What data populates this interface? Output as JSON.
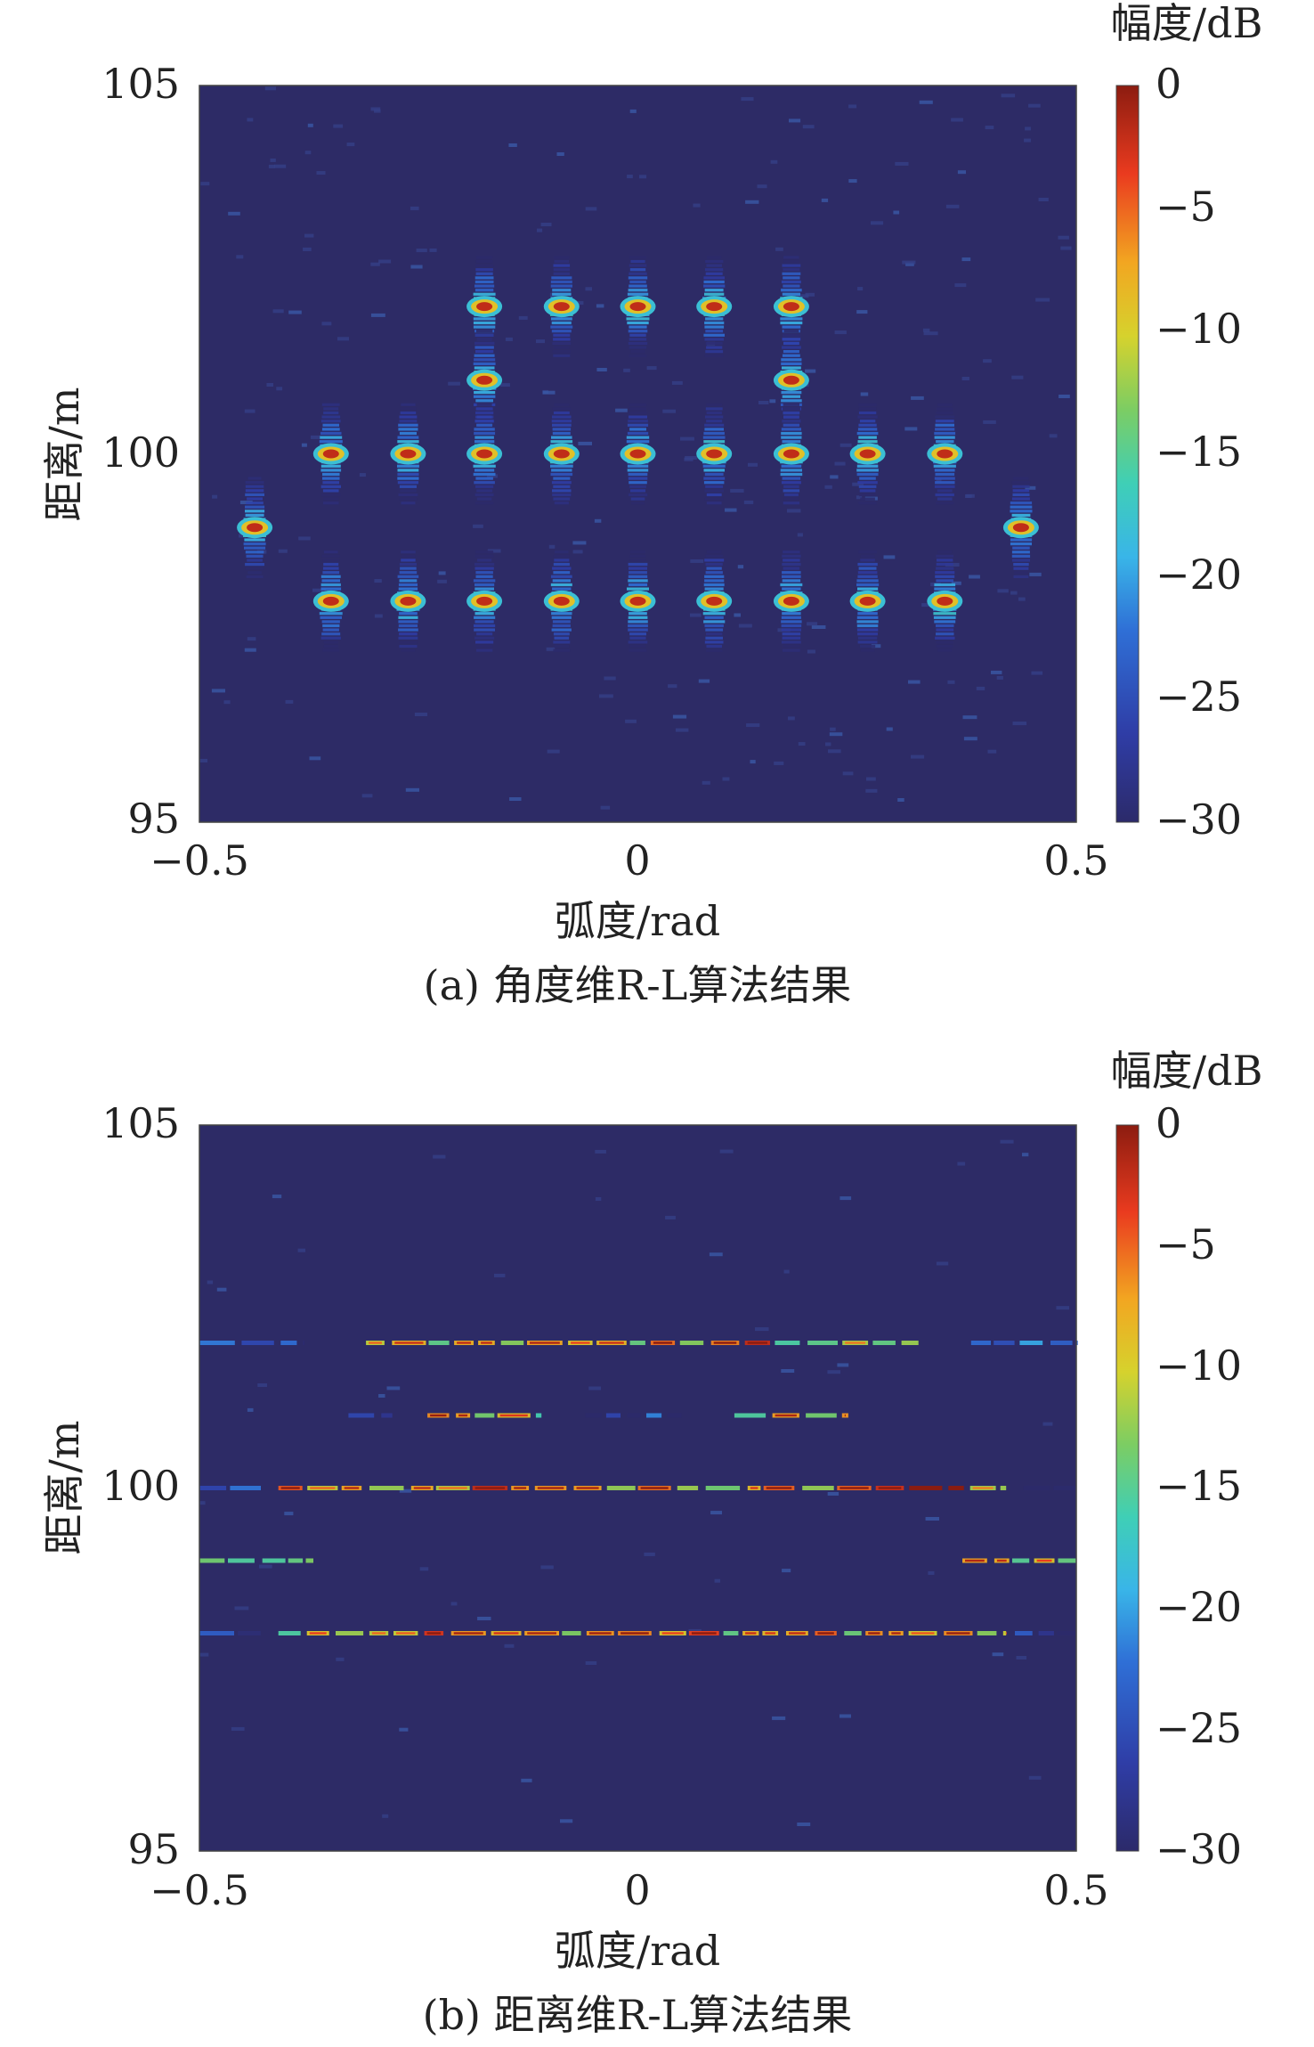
{
  "figure": {
    "panels": [
      {
        "caption": "(a) 角度维R-L算法结果",
        "xlabel": "弧度/rad",
        "ylabel": "距离/m",
        "colorbar_label": "幅度/dB",
        "x_ticks": [
          "−0.5",
          "0",
          "0.5"
        ],
        "y_ticks": [
          "105",
          "100",
          "95"
        ],
        "colorbar_ticks": [
          "0",
          "−5",
          "−10",
          "−15",
          "−20",
          "−25",
          "−30"
        ]
      },
      {
        "caption": "(b) 距离维R-L算法结果",
        "xlabel": "弧度/rad",
        "ylabel": "距离/m",
        "colorbar_label": "幅度/dB",
        "x_ticks": [
          "−0.5",
          "0",
          "0.5"
        ],
        "y_ticks": [
          "105",
          "100",
          "95"
        ],
        "colorbar_ticks": [
          "0",
          "−5",
          "−10",
          "−15",
          "−20",
          "−25",
          "−30"
        ]
      }
    ]
  },
  "chart_data": [
    {
      "type": "heatmap",
      "title": "",
      "xlabel": "弧度/rad",
      "ylabel": "距离/m",
      "xlim": [
        -0.5,
        0.5
      ],
      "ylim": [
        95,
        105
      ],
      "clim": [
        -30,
        0
      ],
      "colorbar_label": "幅度/dB",
      "colormap": "jet",
      "background_level_db": -30,
      "peaks_shape": "narrow in angle, spread in range",
      "peaks": [
        {
          "x": -0.175,
          "y": 102,
          "db": 0
        },
        {
          "x": -0.087,
          "y": 102,
          "db": 0
        },
        {
          "x": 0,
          "y": 102,
          "db": 0
        },
        {
          "x": 0.087,
          "y": 102,
          "db": 0
        },
        {
          "x": 0.175,
          "y": 102,
          "db": 0
        },
        {
          "x": -0.175,
          "y": 101,
          "db": 0
        },
        {
          "x": 0.175,
          "y": 101,
          "db": 0
        },
        {
          "x": -0.35,
          "y": 100,
          "db": 0
        },
        {
          "x": -0.262,
          "y": 100,
          "db": 0
        },
        {
          "x": -0.175,
          "y": 100,
          "db": 0
        },
        {
          "x": -0.087,
          "y": 100,
          "db": 0
        },
        {
          "x": 0,
          "y": 100,
          "db": 0
        },
        {
          "x": 0.087,
          "y": 100,
          "db": 0
        },
        {
          "x": 0.175,
          "y": 100,
          "db": 0
        },
        {
          "x": 0.262,
          "y": 100,
          "db": 0
        },
        {
          "x": 0.35,
          "y": 100,
          "db": 0
        },
        {
          "x": -0.437,
          "y": 99,
          "db": 0
        },
        {
          "x": 0.437,
          "y": 99,
          "db": 0
        },
        {
          "x": -0.35,
          "y": 98,
          "db": 0
        },
        {
          "x": -0.262,
          "y": 98,
          "db": 0
        },
        {
          "x": -0.175,
          "y": 98,
          "db": 0
        },
        {
          "x": -0.087,
          "y": 98,
          "db": 0
        },
        {
          "x": 0,
          "y": 98,
          "db": 0
        },
        {
          "x": 0.087,
          "y": 98,
          "db": 0
        },
        {
          "x": 0.175,
          "y": 98,
          "db": 0
        },
        {
          "x": 0.262,
          "y": 98,
          "db": 0
        },
        {
          "x": 0.35,
          "y": 98,
          "db": 0
        }
      ]
    },
    {
      "type": "heatmap",
      "title": "",
      "xlabel": "弧度/rad",
      "ylabel": "距离/m",
      "xlim": [
        -0.5,
        0.5
      ],
      "ylim": [
        95,
        105
      ],
      "clim": [
        -30,
        0
      ],
      "colorbar_label": "幅度/dB",
      "colormap": "jet",
      "background_level_db": -30,
      "peaks_shape": "narrow in range, spread in angle",
      "rows": [
        {
          "y": 102,
          "segments": [
            [
              -0.5,
              -0.38,
              -22
            ],
            [
              -0.31,
              0.32,
              -8
            ],
            [
              0.38,
              0.5,
              -22
            ]
          ]
        },
        {
          "y": 101,
          "segments": [
            [
              -0.33,
              -0.28,
              -24
            ],
            [
              -0.24,
              -0.11,
              -6
            ],
            [
              -0.06,
              0.05,
              -26
            ],
            [
              0.11,
              0.24,
              -6
            ]
          ]
        },
        {
          "y": 100,
          "segments": [
            [
              -0.5,
              -0.43,
              -20
            ],
            [
              -0.41,
              0.42,
              -4
            ],
            [
              0.44,
              0.5,
              -22
            ]
          ]
        },
        {
          "y": 99,
          "segments": [
            [
              -0.5,
              -0.37,
              -6
            ],
            [
              0.37,
              0.5,
              -6
            ]
          ]
        },
        {
          "y": 98,
          "segments": [
            [
              -0.5,
              -0.43,
              -24
            ],
            [
              -0.41,
              0.42,
              -6
            ],
            [
              0.43,
              0.5,
              -24
            ]
          ]
        }
      ]
    }
  ]
}
